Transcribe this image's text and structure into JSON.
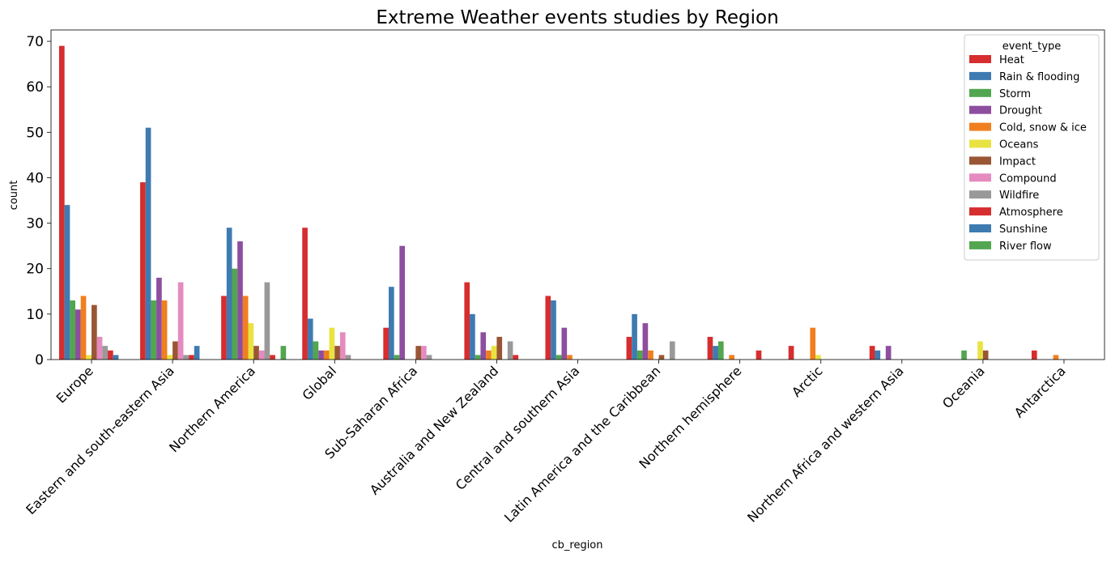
{
  "chart_data": {
    "type": "bar",
    "title": "Extreme Weather events studies by Region",
    "xlabel": "cb_region",
    "ylabel": "count",
    "ylim": [
      0,
      72.5
    ],
    "yticks": [
      0,
      10,
      20,
      30,
      40,
      50,
      60,
      70
    ],
    "grid": false,
    "legend": {
      "title": "event_type",
      "placement": "top-right"
    },
    "categories": [
      "Europe",
      "Eastern and south-eastern Asia",
      "Northern America",
      "Global",
      "Sub-Saharan Africa",
      "Australia and New Zealand",
      "Central and southern Asia",
      "Latin America and the Caribbean",
      "Northern hemisphere",
      "Arctic",
      "Northern Africa and western Asia",
      "Oceania",
      "Antarctica"
    ],
    "series": [
      {
        "name": "Heat",
        "color": "#d62d2f",
        "values": [
          69,
          39,
          14,
          29,
          7,
          17,
          14,
          5,
          5,
          3,
          3,
          0,
          2
        ]
      },
      {
        "name": "Rain & flooding",
        "color": "#3e7bb1",
        "values": [
          34,
          51,
          29,
          9,
          16,
          10,
          13,
          10,
          3,
          0,
          2,
          0,
          0
        ]
      },
      {
        "name": "Storm",
        "color": "#52a650",
        "values": [
          13,
          13,
          20,
          4,
          1,
          1,
          1,
          2,
          4,
          0,
          0,
          2,
          0
        ]
      },
      {
        "name": "Drought",
        "color": "#8e4e9f",
        "values": [
          11,
          18,
          26,
          2,
          25,
          6,
          7,
          8,
          0,
          0,
          3,
          0,
          0
        ]
      },
      {
        "name": "Cold, snow & ice",
        "color": "#f07f1f",
        "values": [
          14,
          13,
          14,
          2,
          0,
          2,
          1,
          2,
          1,
          7,
          0,
          0,
          1
        ]
      },
      {
        "name": "Oceans",
        "color": "#e9e342",
        "values": [
          1,
          1,
          8,
          7,
          0,
          3,
          0,
          0,
          0,
          1,
          0,
          4,
          0
        ]
      },
      {
        "name": "Impact",
        "color": "#995635",
        "values": [
          12,
          4,
          3,
          3,
          3,
          5,
          0,
          1,
          0,
          0,
          0,
          2,
          0
        ]
      },
      {
        "name": "Compound",
        "color": "#e58bbf",
        "values": [
          5,
          17,
          2,
          6,
          3,
          0,
          0,
          0,
          0,
          0,
          0,
          0,
          0
        ]
      },
      {
        "name": "Wildfire",
        "color": "#999999",
        "values": [
          3,
          1,
          17,
          1,
          1,
          4,
          0,
          4,
          0,
          0,
          0,
          0,
          0
        ]
      },
      {
        "name": "Atmosphere",
        "color": "#d62d2f",
        "values": [
          2,
          1,
          1,
          0,
          0,
          1,
          0,
          0,
          2,
          0,
          0,
          0,
          0
        ]
      },
      {
        "name": "Sunshine",
        "color": "#3e7bb1",
        "values": [
          1,
          3,
          0,
          0,
          0,
          0,
          0,
          0,
          0,
          0,
          0,
          0,
          0
        ]
      },
      {
        "name": "River flow",
        "color": "#52a650",
        "values": [
          0,
          0,
          3,
          0,
          0,
          0,
          0,
          0,
          0,
          0,
          0,
          0,
          0
        ]
      }
    ]
  }
}
